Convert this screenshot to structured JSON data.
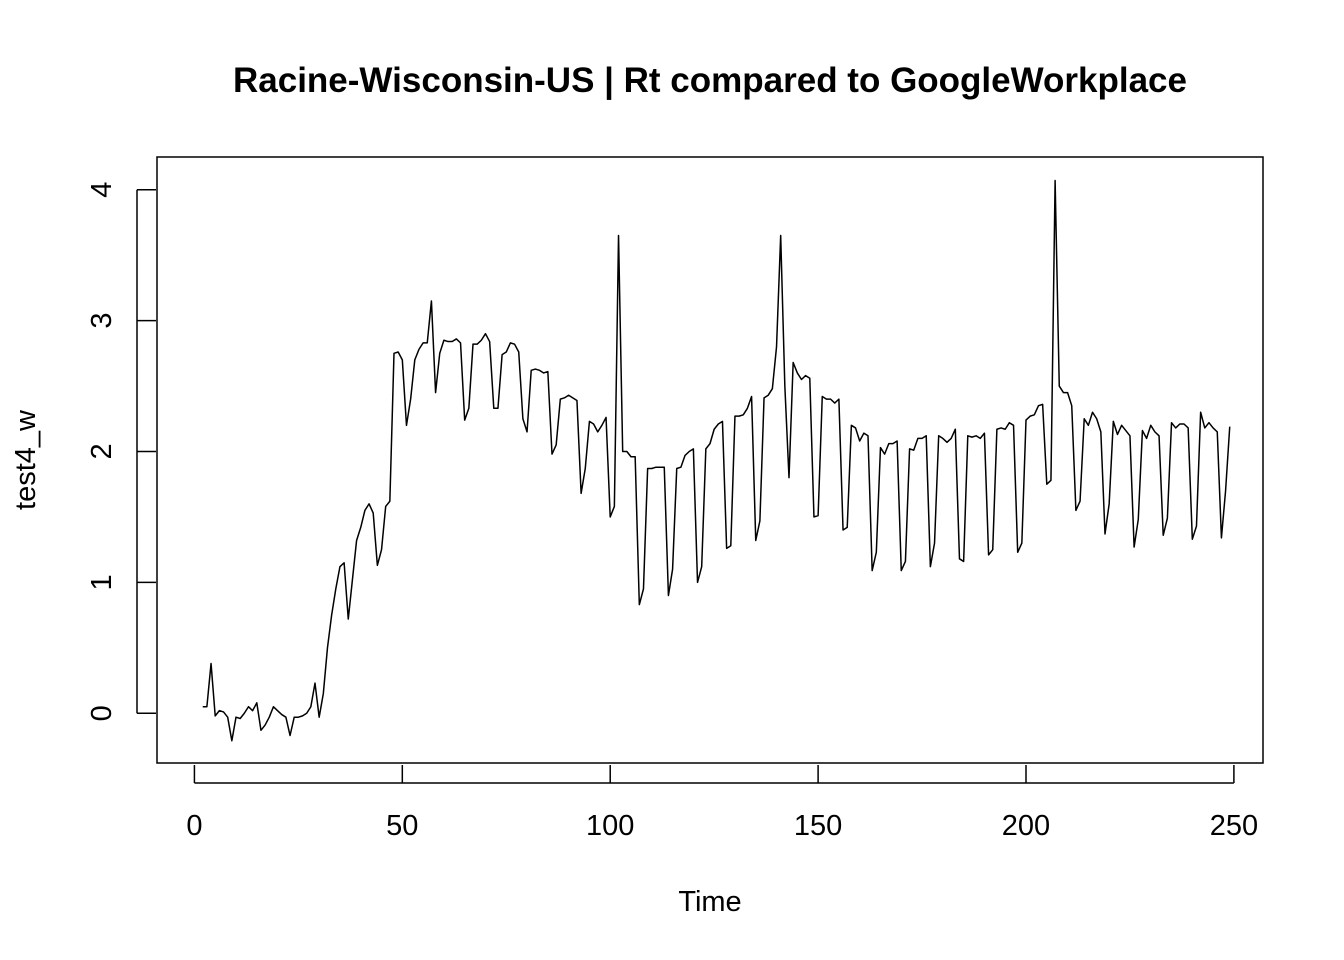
{
  "chart_data": {
    "type": "line",
    "title": "Racine-Wisconsin-US | Rt compared to GoogleWorkplace",
    "xlabel": "Time",
    "ylabel": "test4_w",
    "xlim": [
      -9,
      257
    ],
    "ylim": [
      -0.38,
      4.25
    ],
    "x_ticks": [
      0,
      50,
      100,
      150,
      200,
      250
    ],
    "y_ticks": [
      0,
      1,
      2,
      3,
      4
    ],
    "grid": false,
    "box": true,
    "line_color": "#000000",
    "series": [
      {
        "x_start": 2,
        "values": [
          0.05,
          0.05,
          0.38,
          -0.02,
          0.02,
          0.01,
          -0.03,
          -0.21,
          -0.03,
          -0.04,
          0.0,
          0.05,
          0.02,
          0.08,
          -0.13,
          -0.09,
          -0.03,
          0.05,
          0.02,
          -0.01,
          -0.03,
          -0.17,
          -0.03,
          -0.03,
          -0.02,
          0.0,
          0.05,
          0.23,
          -0.03,
          0.15,
          0.5,
          0.75,
          0.95,
          1.12,
          1.15,
          0.72,
          1.02,
          1.32,
          1.42,
          1.55,
          1.6,
          1.53,
          1.13,
          1.25,
          1.58,
          1.62,
          2.75,
          2.76,
          2.7,
          2.2,
          2.4,
          2.7,
          2.78,
          2.83,
          2.83,
          3.15,
          2.45,
          2.75,
          2.85,
          2.84,
          2.84,
          2.86,
          2.83,
          2.24,
          2.33,
          2.82,
          2.82,
          2.85,
          2.9,
          2.84,
          2.33,
          2.33,
          2.74,
          2.76,
          2.83,
          2.82,
          2.76,
          2.25,
          2.15,
          2.62,
          2.63,
          2.62,
          2.6,
          2.61,
          1.98,
          2.05,
          2.4,
          2.41,
          2.43,
          2.41,
          2.39,
          1.68,
          1.87,
          2.23,
          2.21,
          2.15,
          2.2,
          2.26,
          1.5,
          1.58,
          3.65,
          2.0,
          2.0,
          1.96,
          1.96,
          0.83,
          0.95,
          1.87,
          1.87,
          1.88,
          1.88,
          1.88,
          0.9,
          1.1,
          1.87,
          1.88,
          1.97,
          2.0,
          2.02,
          1.0,
          1.12,
          2.02,
          2.06,
          2.17,
          2.21,
          2.23,
          1.26,
          1.28,
          2.27,
          2.27,
          2.28,
          2.33,
          2.42,
          1.32,
          1.47,
          2.41,
          2.43,
          2.48,
          2.8,
          3.65,
          2.5,
          1.8,
          2.68,
          2.6,
          2.55,
          2.58,
          2.56,
          1.5,
          1.51,
          2.42,
          2.4,
          2.4,
          2.37,
          2.4,
          1.4,
          1.42,
          2.2,
          2.18,
          2.08,
          2.14,
          2.12,
          1.09,
          1.23,
          2.03,
          1.98,
          2.06,
          2.06,
          2.08,
          1.09,
          1.16,
          2.02,
          2.01,
          2.1,
          2.1,
          2.12,
          1.12,
          1.3,
          2.12,
          2.1,
          2.07,
          2.1,
          2.17,
          1.18,
          1.16,
          2.12,
          2.11,
          2.12,
          2.1,
          2.14,
          1.21,
          1.25,
          2.17,
          2.18,
          2.17,
          2.22,
          2.2,
          1.23,
          1.3,
          2.24,
          2.27,
          2.28,
          2.35,
          2.36,
          1.75,
          1.78,
          4.07,
          2.5,
          2.45,
          2.45,
          2.35,
          1.55,
          1.62,
          2.25,
          2.2,
          2.3,
          2.25,
          2.15,
          1.37,
          1.6,
          2.23,
          2.13,
          2.2,
          2.16,
          2.12,
          1.27,
          1.48,
          2.16,
          2.1,
          2.2,
          2.15,
          2.12,
          1.36,
          1.49,
          2.22,
          2.18,
          2.21,
          2.21,
          2.18,
          1.33,
          1.43,
          2.3,
          2.18,
          2.22,
          2.18,
          2.15,
          1.34,
          1.7,
          2.19
        ]
      }
    ]
  }
}
